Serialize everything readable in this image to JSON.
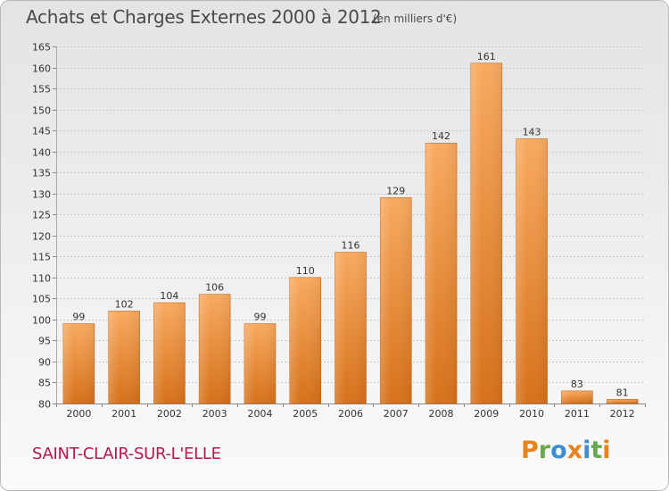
{
  "header": {
    "title": "Achats et Charges Externes 2000 à 2012",
    "subtitle": "(en milliers d'€)"
  },
  "footer": {
    "city": "SAINT-CLAIR-SUR-L'ELLE",
    "logo_text": "Proxiti",
    "logo_letters": [
      {
        "ch": "P",
        "color": "#e8831c"
      },
      {
        "ch": "r",
        "color": "#6aa84f"
      },
      {
        "ch": "o",
        "color": "#3d8fd1"
      },
      {
        "ch": "x",
        "color": "#e8831c"
      },
      {
        "ch": "i",
        "color": "#3d8fd1"
      },
      {
        "ch": "t",
        "color": "#6aa84f"
      },
      {
        "ch": "i",
        "color": "#e8831c"
      }
    ]
  },
  "colors": {
    "bar_light": "#f7a65a",
    "bar_dark": "#d9741c",
    "grid": "#c9c9c9",
    "axis_text": "#333333",
    "city": "#b5194a"
  },
  "chart_data": {
    "type": "bar",
    "title": "Achats et Charges Externes 2000 à 2012",
    "subtitle": "(en milliers d'€)",
    "categories": [
      "2000",
      "2001",
      "2002",
      "2003",
      "2004",
      "2005",
      "2006",
      "2007",
      "2008",
      "2009",
      "2010",
      "2011",
      "2012"
    ],
    "values": [
      99,
      102,
      104,
      106,
      99,
      110,
      116,
      129,
      142,
      161,
      143,
      83,
      81
    ],
    "xlabel": "",
    "ylabel": "",
    "ylim": [
      80,
      165
    ],
    "yticks": [
      80,
      85,
      90,
      95,
      100,
      105,
      110,
      115,
      120,
      125,
      130,
      135,
      140,
      145,
      150,
      155,
      160,
      165
    ],
    "grid": true,
    "data_labels": true
  }
}
